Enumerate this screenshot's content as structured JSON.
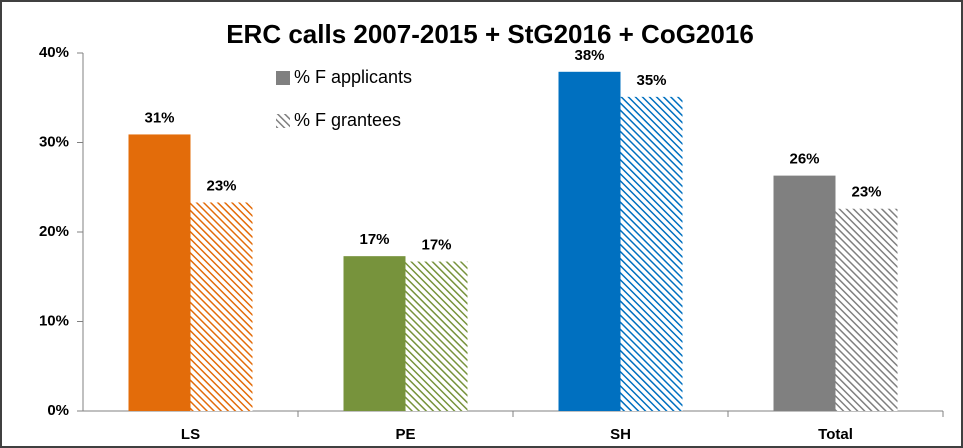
{
  "chart_data": {
    "type": "bar",
    "title": "ERC calls 2007-2015 + StG2016 + CoG2016",
    "categories": [
      "LS",
      "PE",
      "SH",
      "Total"
    ],
    "category_colors": [
      "#e36c0a",
      "#77933c",
      "#0070c0",
      "#808080"
    ],
    "series": [
      {
        "name": "% F applicants",
        "color": "#808080",
        "pattern": "solid",
        "values": [
          30.9,
          17.3,
          37.9,
          26.3
        ],
        "value_labels": [
          "31%",
          "17%",
          "38%",
          "26%"
        ]
      },
      {
        "name": "% F grantees",
        "color": "#808080",
        "pattern": "hatch",
        "values": [
          23.3,
          16.7,
          35.1,
          22.6
        ],
        "value_labels": [
          "23%",
          "17%",
          "35%",
          "23%"
        ]
      }
    ],
    "ylim": [
      0,
      40
    ],
    "yticks": [
      {
        "value": 0,
        "label": "0%"
      },
      {
        "value": 10,
        "label": "10%"
      },
      {
        "value": 20,
        "label": "20%"
      },
      {
        "value": 30,
        "label": "30%"
      },
      {
        "value": 40,
        "label": "40%"
      }
    ],
    "grid": false,
    "legend": "top-left"
  }
}
